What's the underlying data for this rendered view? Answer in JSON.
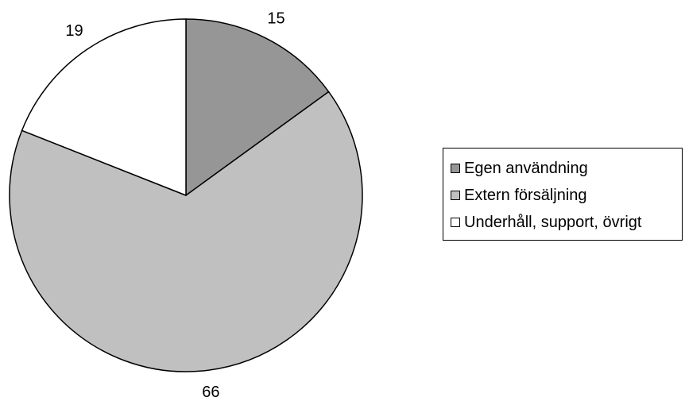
{
  "chart_data": {
    "type": "pie",
    "categories": [
      "Egen användning",
      "Extern försäljning",
      "Underhåll, support, övrigt"
    ],
    "values": [
      15,
      66,
      19
    ],
    "data_labels": [
      "15",
      "66",
      "19"
    ],
    "colors": [
      "#969696",
      "#c0c0c0",
      "#ffffff"
    ],
    "start_angle_deg": 0,
    "direction": "clockwise",
    "legend": {
      "placement": "right",
      "items": [
        {
          "label": "Egen användning",
          "color": "#969696"
        },
        {
          "label": "Extern försäljning",
          "color": "#c0c0c0"
        },
        {
          "label": "Underhåll, support, övrigt",
          "color": "#ffffff"
        }
      ]
    }
  }
}
